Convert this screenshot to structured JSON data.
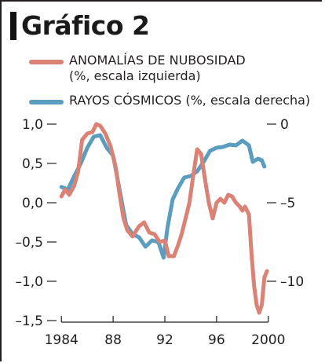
{
  "title": "Gráfico 2",
  "legend": [
    {
      "label": "ANOMALÍAS DE NUBOSIDAD",
      "sublabel": "(%, escala izquierda)"
    },
    {
      "label": "RAYOS CÓSMICOS (%, escala derecha)",
      "sublabel": ""
    }
  ],
  "colors": {
    "clouds": "#d98275",
    "cosmic": "#5b9dbe",
    "axis": "#231f20"
  },
  "chart_data": {
    "type": "line",
    "x_ticks": [
      "1984",
      "88",
      "92",
      "96",
      "2000"
    ],
    "x_tick_values": [
      1984,
      1988,
      1992,
      1996,
      2000
    ],
    "xlim": [
      1983.5,
      2000.5
    ],
    "y_left_ticks": [
      "1,0",
      "0,5",
      "0,0",
      "–0,5",
      "–1,0",
      "–1,5"
    ],
    "y_left_values": [
      1.0,
      0.5,
      0.0,
      -0.5,
      -1.0,
      -1.5
    ],
    "ylim_left": [
      -1.5,
      1.0
    ],
    "y_right_ticks": [
      "0",
      "–5",
      "–10"
    ],
    "y_right_values": [
      0,
      -5,
      -10
    ],
    "ylim_right": [
      -12.5,
      0
    ],
    "grid": false,
    "series": [
      {
        "name": "ANOMALÍAS DE NUBOSIDAD (%, escala izquierda)",
        "axis": "left",
        "color": "#d98275",
        "points": [
          [
            1984.0,
            0.08
          ],
          [
            1984.3,
            0.17
          ],
          [
            1984.6,
            0.1
          ],
          [
            1985.0,
            0.22
          ],
          [
            1985.3,
            0.4
          ],
          [
            1985.6,
            0.8
          ],
          [
            1986.0,
            0.88
          ],
          [
            1986.4,
            0.9
          ],
          [
            1986.7,
            1.0
          ],
          [
            1987.0,
            0.98
          ],
          [
            1987.4,
            0.88
          ],
          [
            1987.8,
            0.72
          ],
          [
            1988.2,
            0.45
          ],
          [
            1988.5,
            0.1
          ],
          [
            1988.8,
            -0.2
          ],
          [
            1989.1,
            -0.35
          ],
          [
            1989.5,
            -0.43
          ],
          [
            1990.0,
            -0.3
          ],
          [
            1990.4,
            -0.25
          ],
          [
            1990.8,
            -0.38
          ],
          [
            1991.2,
            -0.4
          ],
          [
            1991.6,
            -0.5
          ],
          [
            1992.0,
            -0.48
          ],
          [
            1992.3,
            -0.68
          ],
          [
            1992.7,
            -0.68
          ],
          [
            1993.0,
            -0.55
          ],
          [
            1993.3,
            -0.4
          ],
          [
            1993.6,
            -0.2
          ],
          [
            1993.9,
            0.0
          ],
          [
            1994.2,
            0.35
          ],
          [
            1994.5,
            0.68
          ],
          [
            1994.8,
            0.62
          ],
          [
            1995.1,
            0.3
          ],
          [
            1995.4,
            0.0
          ],
          [
            1995.7,
            -0.2
          ],
          [
            1996.0,
            0.0
          ],
          [
            1996.3,
            0.05
          ],
          [
            1996.6,
            0.0
          ],
          [
            1996.9,
            0.1
          ],
          [
            1997.2,
            0.08
          ],
          [
            1997.5,
            0.0
          ],
          [
            1997.8,
            -0.05
          ],
          [
            1998.0,
            -0.1
          ],
          [
            1998.2,
            -0.05
          ],
          [
            1998.5,
            -0.15
          ],
          [
            1998.7,
            -0.65
          ],
          [
            1998.9,
            -1.05
          ],
          [
            1999.1,
            -1.3
          ],
          [
            1999.3,
            -1.4
          ],
          [
            1999.5,
            -1.3
          ],
          [
            1999.7,
            -0.95
          ],
          [
            1999.9,
            -0.87
          ]
        ]
      },
      {
        "name": "RAYOS CÓSMICOS (%, escala derecha)",
        "axis": "right",
        "color": "#5b9dbe",
        "points": [
          [
            1984.0,
            -4.0
          ],
          [
            1984.5,
            -4.15
          ],
          [
            1985.0,
            -3.3
          ],
          [
            1985.5,
            -2.5
          ],
          [
            1986.0,
            -1.5
          ],
          [
            1986.5,
            -0.8
          ],
          [
            1987.0,
            -0.7
          ],
          [
            1987.5,
            -1.5
          ],
          [
            1988.0,
            -2.0
          ],
          [
            1988.5,
            -4.2
          ],
          [
            1989.0,
            -6.4
          ],
          [
            1989.5,
            -7.0
          ],
          [
            1990.0,
            -7.2
          ],
          [
            1990.5,
            -7.8
          ],
          [
            1991.0,
            -7.4
          ],
          [
            1991.5,
            -7.5
          ],
          [
            1991.9,
            -8.5
          ],
          [
            1992.2,
            -6.6
          ],
          [
            1992.6,
            -4.8
          ],
          [
            1993.0,
            -4.1
          ],
          [
            1993.5,
            -3.4
          ],
          [
            1994.0,
            -3.3
          ],
          [
            1994.5,
            -3.0
          ],
          [
            1995.0,
            -2.4
          ],
          [
            1995.5,
            -1.7
          ],
          [
            1996.0,
            -1.5
          ],
          [
            1996.5,
            -1.45
          ],
          [
            1997.0,
            -1.3
          ],
          [
            1997.5,
            -1.35
          ],
          [
            1998.0,
            -1.05
          ],
          [
            1998.5,
            -1.35
          ],
          [
            1998.8,
            -2.4
          ],
          [
            1999.2,
            -2.2
          ],
          [
            1999.5,
            -2.3
          ],
          [
            1999.7,
            -2.7
          ]
        ]
      }
    ]
  }
}
